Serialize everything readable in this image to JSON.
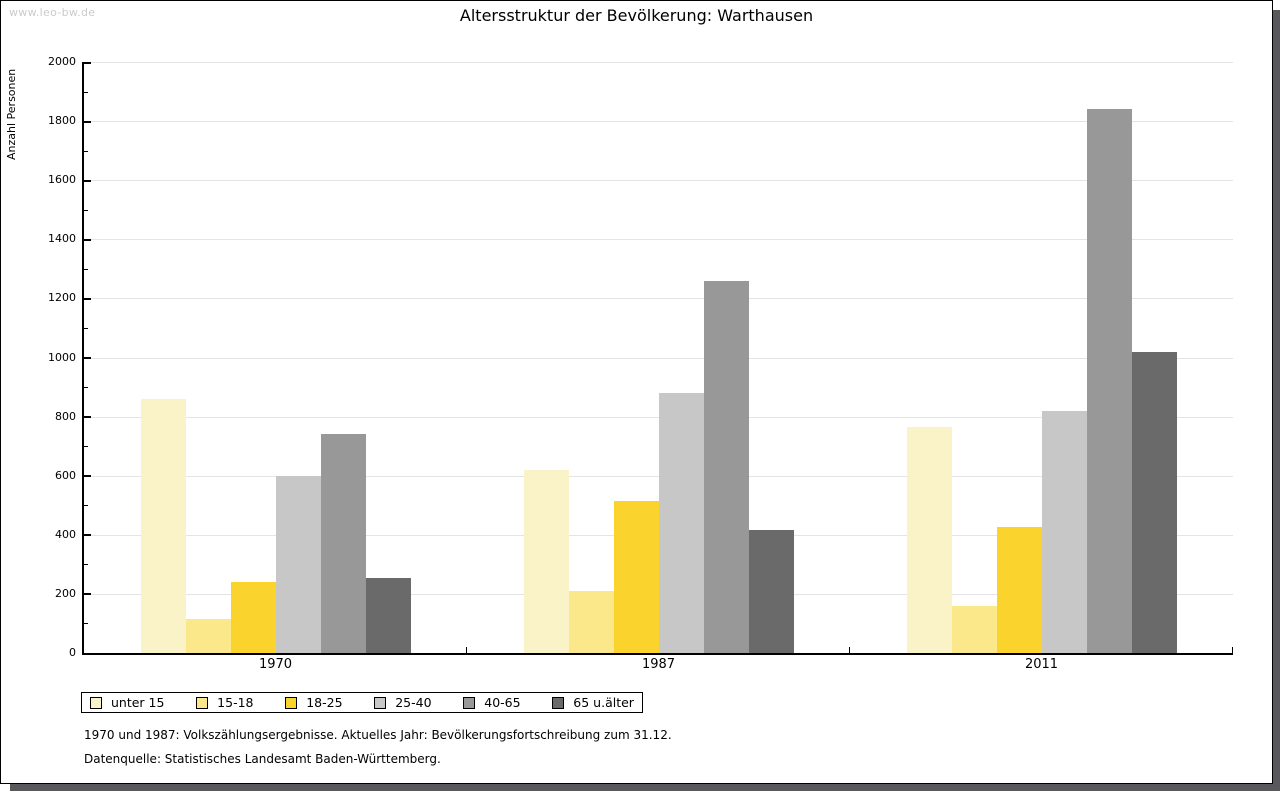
{
  "window": {
    "watermark": "www.leo-bw.de"
  },
  "chart_data": {
    "type": "bar",
    "title": "Altersstruktur der Bevölkerung: Warthausen",
    "ylabel": "Anzahl Personen",
    "xlabel": "",
    "ylim": [
      0,
      2000
    ],
    "ytick_step": 200,
    "yminor_step": 100,
    "grid": true,
    "legend_position": "bottom",
    "categories": [
      "1970",
      "1987",
      "2011"
    ],
    "series": [
      {
        "name": "unter 15",
        "color": "#FAF3C8",
        "values": [
          860,
          620,
          765
        ]
      },
      {
        "name": "15-18",
        "color": "#FAE88A",
        "values": [
          115,
          210,
          160
        ]
      },
      {
        "name": "18-25",
        "color": "#FBD32D",
        "values": [
          240,
          515,
          425
        ]
      },
      {
        "name": "25-40",
        "color": "#C7C7C7",
        "values": [
          600,
          880,
          820
        ]
      },
      {
        "name": "40-65",
        "color": "#989898",
        "values": [
          740,
          1260,
          1840
        ]
      },
      {
        "name": "65 u.älter",
        "color": "#6A6A6A",
        "values": [
          255,
          415,
          1020
        ]
      }
    ]
  },
  "notes": {
    "line1": "1970 und 1987: Volkszählungsergebnisse. Aktuelles Jahr: Bevölkerungsfortschreibung zum 31.12.",
    "line2": "Datenquelle: Statistisches Landesamt Baden-Württemberg."
  }
}
